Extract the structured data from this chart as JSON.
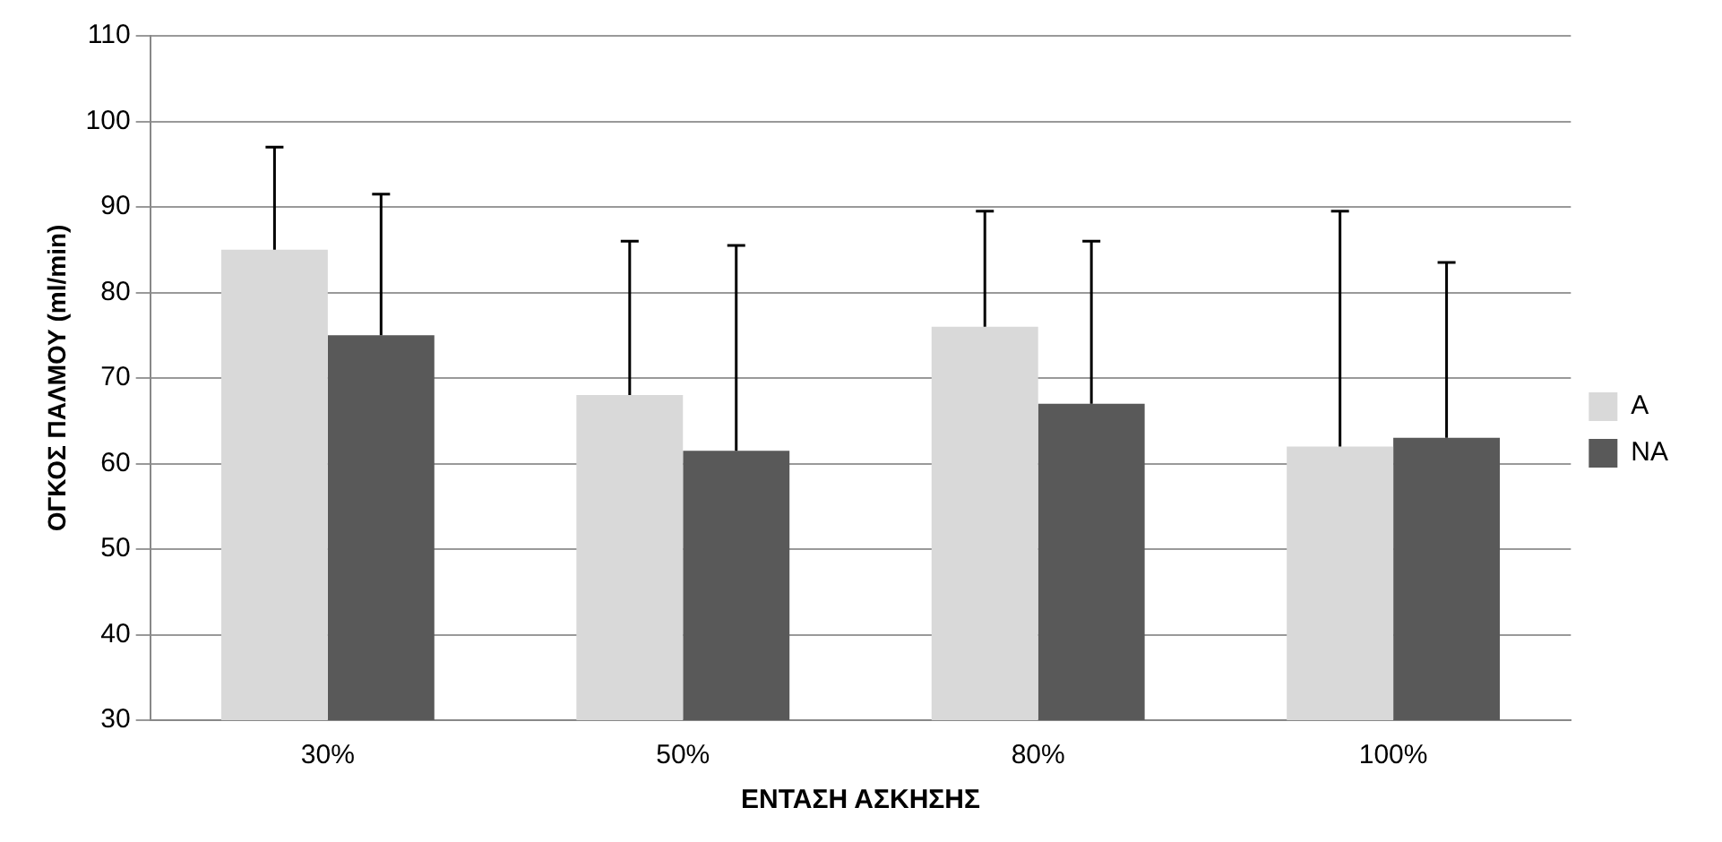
{
  "chart_data": {
    "type": "bar",
    "xlabel": "ΕΝΤΑΣΗ ΑΣΚΗΣΗΣ",
    "ylabel": "ΟΓΚΟΣ ΠΑΛΜΟΥ (ml/min)",
    "categories": [
      "30%",
      "50%",
      "80%",
      "100%"
    ],
    "series": [
      {
        "name": "Α",
        "color": "#d9d9d9",
        "values": [
          85,
          68,
          76,
          62
        ],
        "errors": [
          [
            85,
            97
          ],
          [
            68,
            86
          ],
          [
            76,
            89.5
          ],
          [
            62,
            89.5
          ]
        ]
      },
      {
        "name": "ΝΑ",
        "color": "#595959",
        "values": [
          75,
          61.5,
          67,
          63
        ],
        "errors": [
          [
            75,
            91.5
          ],
          [
            61.5,
            85.5
          ],
          [
            67,
            86
          ],
          [
            63,
            83.5
          ]
        ]
      }
    ],
    "ylim": [
      30,
      110
    ],
    "yticks": [
      30,
      40,
      50,
      60,
      70,
      80,
      90,
      100,
      110
    ],
    "grid": "y",
    "legend": "right"
  }
}
